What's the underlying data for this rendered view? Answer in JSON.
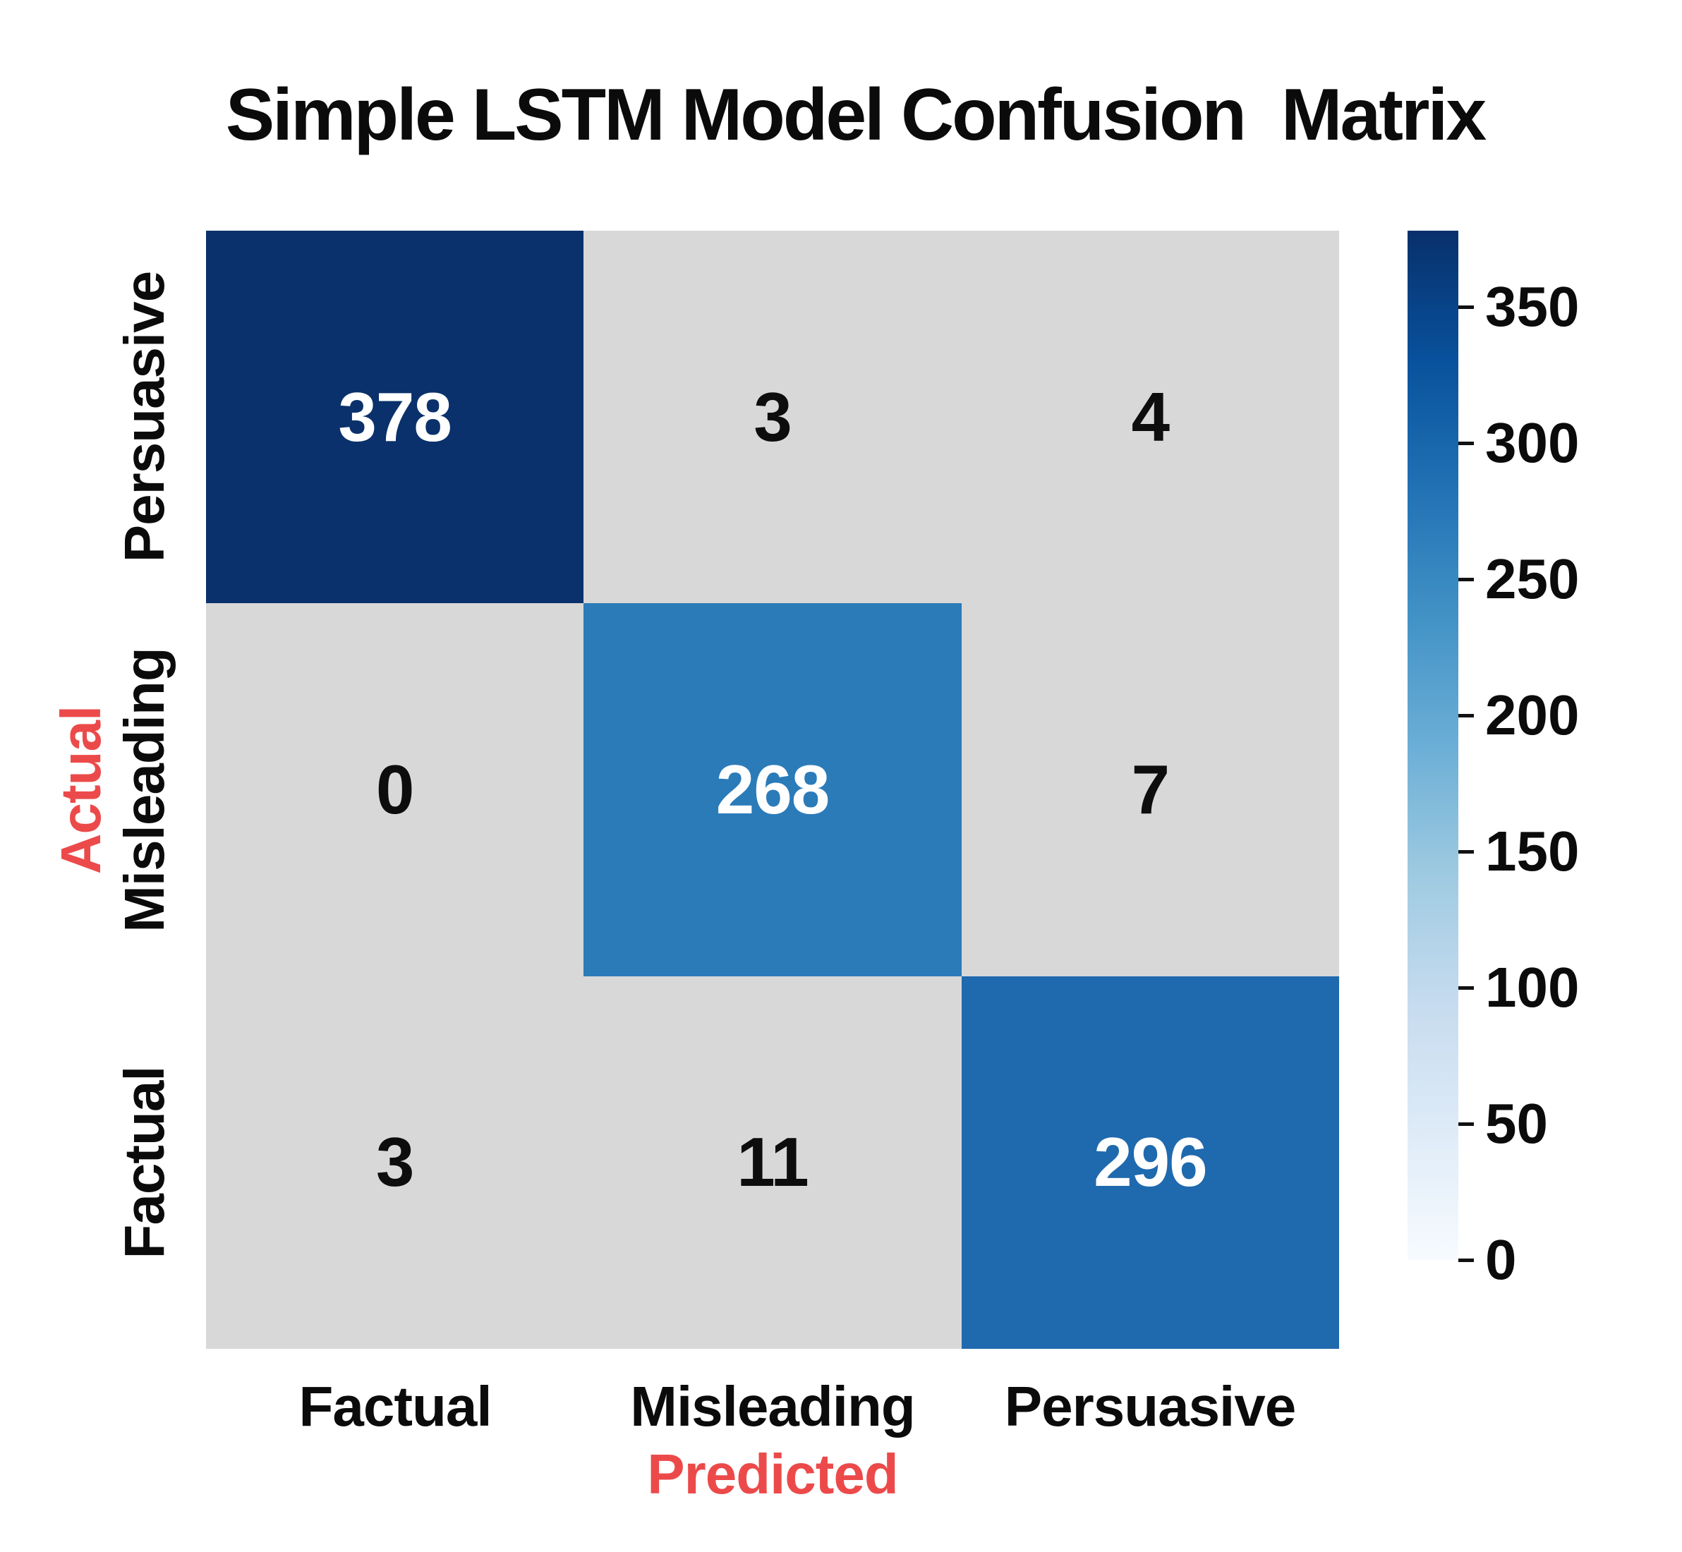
{
  "chart_data": {
    "type": "heatmap",
    "title": "Simple LSTM Model Confusion  Matrix",
    "x_axis": {
      "label": "Predicted",
      "categories": [
        "Factual",
        "Misleading",
        "Persuasive"
      ]
    },
    "y_axis": {
      "label": "Actual",
      "categories": [
        "Persuasive",
        "Misleading",
        "Factual"
      ]
    },
    "matrix": [
      [
        378,
        3,
        4
      ],
      [
        0,
        268,
        7
      ],
      [
        3,
        11,
        296
      ]
    ],
    "colorbar": {
      "vmin": 0,
      "vmax": 378,
      "ticks": [
        "350",
        "300",
        "250",
        "200",
        "150",
        "100",
        "50",
        "0"
      ],
      "position": "right"
    },
    "legend": "none",
    "grid": "off",
    "style": {
      "title_color": "#0b0b0b",
      "axis_label_black": "#0b0b0b",
      "axis_title_red": "#ec4a4a",
      "diagonal_fills": [
        "#0a316b",
        "#2b7bb9",
        "#1f69ae"
      ],
      "offdiag_fill": "#d8d8d8",
      "diagonal_value_color": "#ffffff",
      "offdiag_value_color": "#0d0d0d",
      "colorbar_gradient_bottom_to_top": [
        "#f7fbff",
        "#deebf7",
        "#c6dbef",
        "#9ecae1",
        "#6baed6",
        "#4292c6",
        "#2171b5",
        "#08519c",
        "#08306b"
      ]
    }
  }
}
